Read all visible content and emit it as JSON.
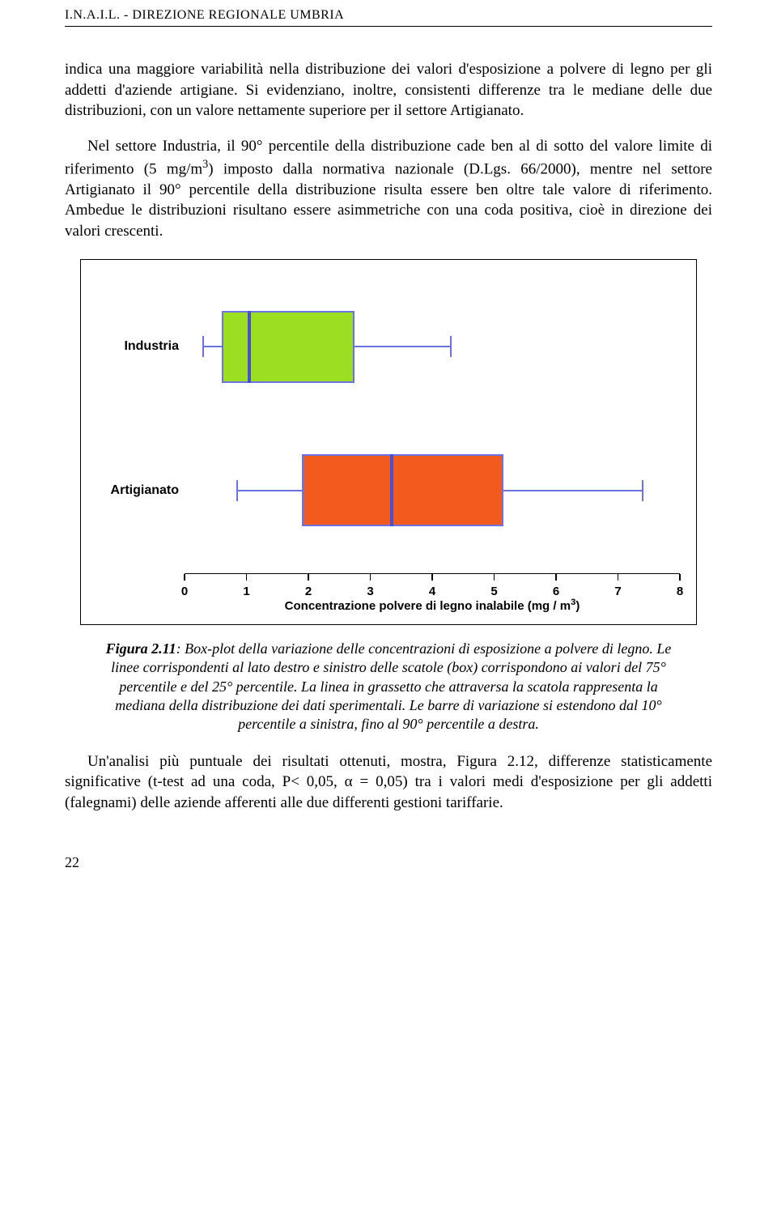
{
  "header": {
    "running": "I.N.A.I.L. - DIREZIONE REGIONALE UMBRIA"
  },
  "paragraphs": {
    "p1": "indica una maggiore variabilità nella distribuzione dei valori d'esposizione a polvere di legno per gli addetti d'aziende artigiane. Si evidenziano, inoltre, consistenti differenze tra le mediane delle due distribuzioni, con un valore nettamente superiore per il settore Artigianato.",
    "p2_html": "Nel settore Industria, il 90° percentile della distribuzione cade ben al di sotto del valore limite di riferimento (5 mg/m<sup>3</sup>) imposto dalla normativa nazionale (D.Lgs. 66/2000), mentre nel settore Artigianato il 90° percentile della distribuzione risulta essere ben oltre tale valore di riferimento. Ambedue le distribuzioni risultano essere asimmetriche con una coda positiva, cioè in direzione dei valori crescenti.",
    "p3": "Un'analisi più puntuale dei risultati ottenuti, mostra, Figura 2.12, differenze statisticamente significative (t-test ad una coda, P< 0,05, α = 0,05) tra i valori medi d'esposizione per gli addetti (falegnami) delle aziende afferenti alle due differenti gestioni tariffarie."
  },
  "chart": {
    "type": "boxplot",
    "orientation": "horizontal",
    "x": {
      "min": 0,
      "max": 8,
      "ticks": [
        0,
        1,
        2,
        3,
        4,
        5,
        6,
        7,
        8
      ],
      "tick_labels": [
        "0",
        "1",
        "2",
        "3",
        "4",
        "5",
        "6",
        "7",
        "8"
      ],
      "title_html": "Concentrazione polvere di legno inalabile (mg / m<sup>3</sup>)",
      "tick_fontsize": 15,
      "title_fontsize": 15
    },
    "y_labels": [
      "Industria",
      "Artigianato"
    ],
    "y_fontsize": 16,
    "series": [
      {
        "name": "Industria",
        "y_center_frac": 0.24,
        "box_height_frac": 0.24,
        "p10": 0.3,
        "q1": 0.6,
        "median": 1.05,
        "q3": 2.75,
        "p90": 4.3,
        "fill": "#9bde22",
        "border": "#6a73e0",
        "whisker_color": "#6a73e0",
        "median_color": "#4a4fd1",
        "whisker_cap_frac": 0.07
      },
      {
        "name": "Artigianato",
        "y_center_frac": 0.72,
        "box_height_frac": 0.24,
        "p10": 0.85,
        "q1": 1.9,
        "median": 3.35,
        "q3": 5.15,
        "p90": 7.4,
        "fill": "#f25a1e",
        "border": "#6a73e0",
        "whisker_color": "#6a73e0",
        "median_color": "#4a4fd1",
        "whisker_cap_frac": 0.07
      }
    ],
    "background": "#ffffff",
    "frame_color": "#000000"
  },
  "caption": {
    "label": "Figura 2.11",
    "text": ": Box-plot della variazione delle concentrazioni di esposizione a polvere di legno. Le linee corrispondenti al lato destro e sinistro delle scatole (box) corrispondono ai valori del 75° percentile e del 25° percentile. La linea in grassetto che attraversa la scatola rappresenta la mediana della distribuzione dei dati sperimentali. Le barre di variazione si estendono dal 10° percentile a sinistra, fino al 90° percentile a destra."
  },
  "page_number": "22"
}
